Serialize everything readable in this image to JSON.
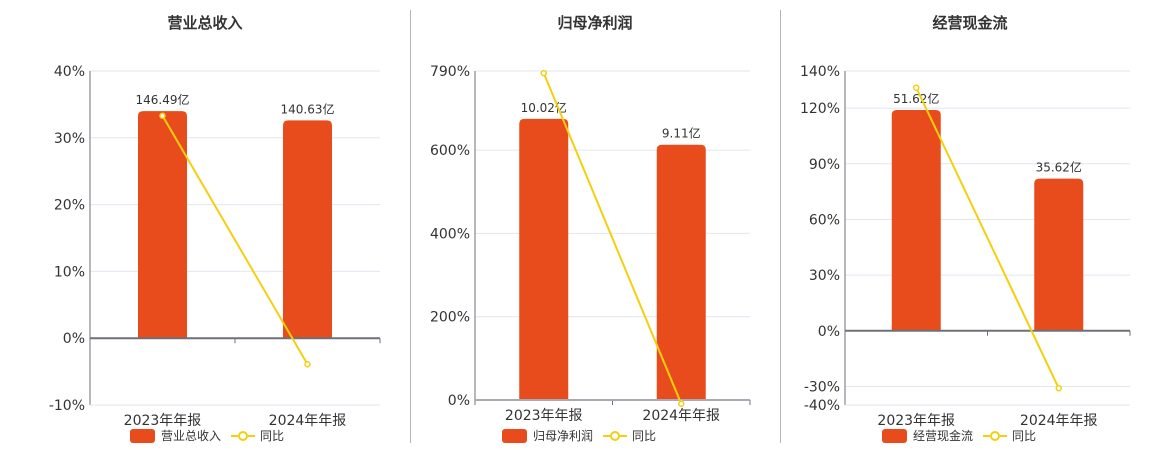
{
  "colors": {
    "bar": "#e84c1c",
    "line": "#f5cf0f",
    "axis": "#6e7079",
    "grid": "#e0e6f1",
    "text": "#333333"
  },
  "legend": {
    "line_label": "同比"
  },
  "chart_data": [
    {
      "type": "bar+line",
      "title": "营业总收入",
      "categories": [
        "2023年年报",
        "2024年年报"
      ],
      "series": [
        {
          "name": "营业总收入",
          "type": "bar",
          "values": [
            146.49,
            140.63
          ],
          "labels": [
            "146.49亿",
            "140.63亿"
          ],
          "unit": "亿"
        },
        {
          "name": "同比",
          "type": "line",
          "values": [
            33.3,
            -3.9
          ],
          "unit": "%"
        }
      ],
      "yaxis": {
        "ticks": [
          "40%",
          "30%",
          "20%",
          "10%",
          "0%",
          "-10%"
        ],
        "tick_values": [
          40,
          30,
          20,
          10,
          0,
          -10
        ],
        "ylim": [
          -10,
          40
        ]
      },
      "bar_pct_equiv": [
        34.0,
        32.6
      ]
    },
    {
      "type": "bar+line",
      "title": "归母净利润",
      "categories": [
        "2023年年报",
        "2024年年报"
      ],
      "series": [
        {
          "name": "归母净利润",
          "type": "bar",
          "values": [
            10.02,
            9.11
          ],
          "labels": [
            "10.02亿",
            "9.11亿"
          ],
          "unit": "亿"
        },
        {
          "name": "同比",
          "type": "line",
          "values": [
            785,
            -9
          ],
          "unit": "%"
        }
      ],
      "yaxis": {
        "ticks": [
          "790%",
          "600%",
          "400%",
          "200%",
          "0%"
        ],
        "tick_values": [
          790,
          600,
          400,
          200,
          0
        ],
        "ylim": [
          0,
          790
        ]
      },
      "bar_pct_equiv": [
        675,
        613
      ]
    },
    {
      "type": "bar+line",
      "title": "经营现金流",
      "categories": [
        "2023年年报",
        "2024年年报"
      ],
      "series": [
        {
          "name": "经营现金流",
          "type": "bar",
          "values": [
            51.62,
            35.62
          ],
          "labels": [
            "51.62亿",
            "35.62亿"
          ],
          "unit": "亿"
        },
        {
          "name": "同比",
          "type": "line",
          "values": [
            131,
            -31
          ],
          "unit": "%"
        }
      ],
      "yaxis": {
        "ticks": [
          "140%",
          "120%",
          "90%",
          "60%",
          "30%",
          "0%",
          "-30%",
          "-40%"
        ],
        "tick_values": [
          140,
          120,
          90,
          60,
          30,
          0,
          -30,
          -40
        ],
        "ylim": [
          -40,
          140
        ]
      },
      "bar_pct_equiv": [
        119,
        82
      ]
    }
  ]
}
